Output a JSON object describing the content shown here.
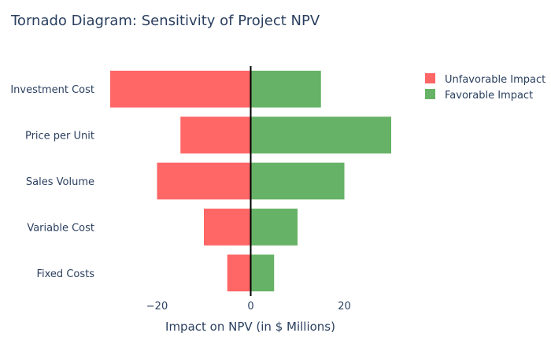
{
  "chart_data": {
    "type": "bar",
    "orientation": "horizontal",
    "title": "Tornado Diagram: Sensitivity of Project NPV",
    "xlabel": "Impact on NPV (in $ Millions)",
    "ylabel": "",
    "categories": [
      "Investment Cost",
      "Price per Unit",
      "Sales Volume",
      "Variable Cost",
      "Fixed Costs"
    ],
    "series": [
      {
        "name": "Unfavorable Impact",
        "color": "#FF6666",
        "values": [
          -30,
          -15,
          -20,
          -10,
          -5
        ]
      },
      {
        "name": "Favorable Impact",
        "color": "#66B266",
        "values": [
          15,
          30,
          20,
          10,
          5
        ]
      }
    ],
    "xlim": [
      -30,
      30
    ],
    "xticks": [
      -20,
      0,
      20
    ],
    "xtick_labels": [
      "−20",
      "0",
      "20"
    ],
    "grid": false,
    "zero_line": true,
    "legend_position": "top-right"
  }
}
